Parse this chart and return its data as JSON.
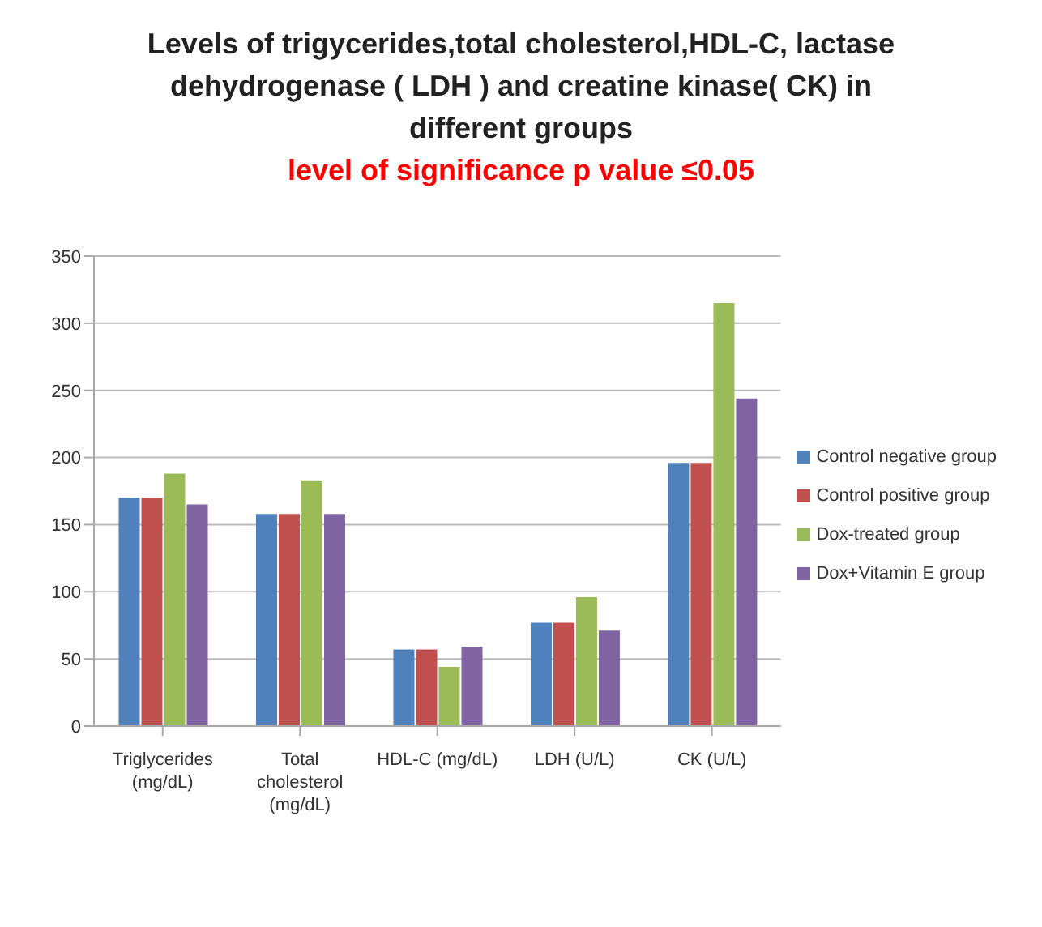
{
  "chart_data": {
    "type": "bar",
    "title": "Levels of trigycerides,total cholesterol,HDL-C, lactase dehydrogenase ( LDH ) and creatine kinase( CK)  in different groups",
    "subtitle": "level of significance p value ≤0.05",
    "categories": [
      "Triglycerides (mg/dL)",
      "Total cholesterol (mg/dL)",
      "HDL-C (mg/dL)",
      "LDH (U/L)",
      "CK (U/L)"
    ],
    "series": [
      {
        "name": "Control negative  group",
        "color": "#4f81bd",
        "values": [
          170,
          158,
          57,
          77,
          196
        ]
      },
      {
        "name": "Control positive group",
        "color": "#c0504d",
        "values": [
          170,
          158,
          57,
          77,
          196
        ]
      },
      {
        "name": "Dox-treated group",
        "color": "#9bbb59",
        "values": [
          188,
          183,
          44,
          96,
          315
        ]
      },
      {
        "name": "Dox+Vitamin E group",
        "color": "#8064a2",
        "values": [
          165,
          158,
          59,
          71,
          244
        ]
      }
    ],
    "ylim": [
      0,
      350
    ],
    "yticks": [
      0,
      50,
      100,
      150,
      200,
      250,
      300,
      350
    ],
    "grid": "y",
    "legend": "right"
  }
}
